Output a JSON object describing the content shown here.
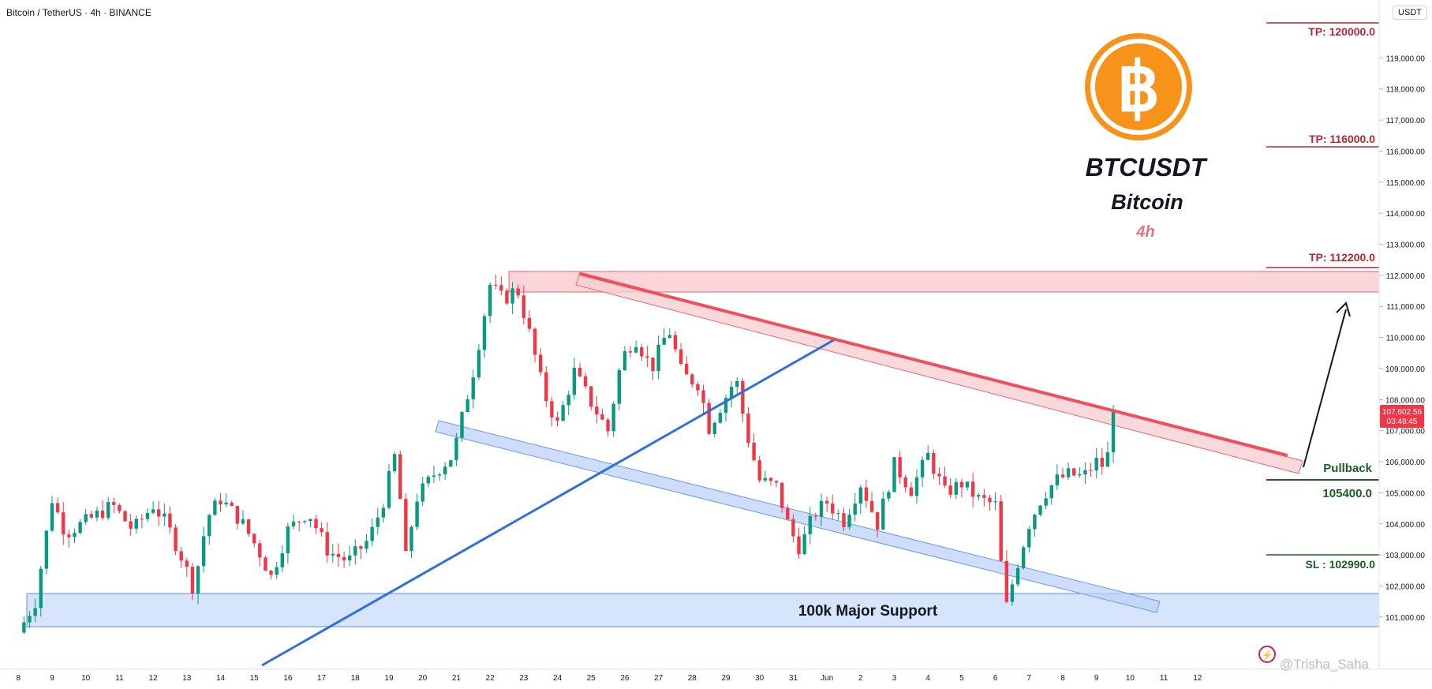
{
  "header": {
    "symbol_line": "Bitcoin / TetherUS · 4h · BINANCE",
    "currency": "USDT"
  },
  "branding": {
    "logo": "bitcoin-logo",
    "ticker": "BTCUSDT",
    "name": "Bitcoin",
    "timeframe": "4h"
  },
  "levels": {
    "tp1": "TP: 120000.0",
    "tp2": "TP: 116000.0",
    "tp3": "TP: 112200.0",
    "entry_label": "Pullback",
    "entry_value": "105400.0",
    "sl": "SL : 102990.0"
  },
  "price_tag": {
    "price": "107,602.56",
    "countdown": "03:48:45"
  },
  "annotations": {
    "support": "100k Major Support"
  },
  "watermark": "@Trisha_Saha",
  "colors": {
    "up": "#089981",
    "down": "#f23645",
    "tp": "#b22833",
    "sl_entry": "#1b5e20",
    "trendline": "#f0505c",
    "channel_blue": "#2f6fe0",
    "support_fill": "#cfe0fb"
  },
  "chart_data": {
    "type": "candlestick",
    "timeframe": "4h",
    "ylim": [
      99500,
      121000
    ],
    "y_ticks": [
      "101,000.00",
      "102,000.00",
      "103,000.00",
      "104,000.00",
      "105,000.00",
      "106,000.00",
      "107,000.00",
      "108,000.00",
      "109,000.00",
      "110,000.00",
      "111,000.00",
      "112,000.00",
      "113,000.00",
      "114,000.00",
      "115,000.00",
      "116,000.00",
      "117,000.00",
      "118,000.00",
      "119,000.00"
    ],
    "x_ticks": [
      "8",
      "9",
      "10",
      "11",
      "12",
      "13",
      "14",
      "15",
      "16",
      "17",
      "18",
      "19",
      "20",
      "21",
      "22",
      "23",
      "24",
      "25",
      "26",
      "27",
      "28",
      "29",
      "30",
      "31",
      "Jun",
      "2",
      "3",
      "4",
      "5",
      "6",
      "7",
      "8",
      "9",
      "10",
      "11",
      "12"
    ],
    "last_price": 107602.56,
    "anchors": [
      {
        "day": 8.0,
        "price": 100500
      },
      {
        "day": 8.5,
        "price": 101500
      },
      {
        "day": 9.0,
        "price": 104800
      },
      {
        "day": 9.4,
        "price": 103700
      },
      {
        "day": 10.2,
        "price": 104200
      },
      {
        "day": 10.8,
        "price": 104600
      },
      {
        "day": 11.4,
        "price": 103800
      },
      {
        "day": 12.0,
        "price": 104600
      },
      {
        "day": 12.4,
        "price": 104000
      },
      {
        "day": 12.9,
        "price": 102800
      },
      {
        "day": 13.2,
        "price": 101900
      },
      {
        "day": 13.6,
        "price": 104200
      },
      {
        "day": 14.0,
        "price": 104800
      },
      {
        "day": 14.6,
        "price": 104100
      },
      {
        "day": 15.1,
        "price": 103200
      },
      {
        "day": 15.5,
        "price": 102300
      },
      {
        "day": 16.0,
        "price": 103800
      },
      {
        "day": 16.6,
        "price": 104400
      },
      {
        "day": 17.2,
        "price": 103100
      },
      {
        "day": 17.8,
        "price": 102800
      },
      {
        "day": 18.4,
        "price": 103500
      },
      {
        "day": 18.8,
        "price": 104600
      },
      {
        "day": 19.2,
        "price": 106300
      },
      {
        "day": 19.5,
        "price": 102900
      },
      {
        "day": 19.8,
        "price": 104800
      },
      {
        "day": 20.4,
        "price": 105700
      },
      {
        "day": 20.9,
        "price": 106200
      },
      {
        "day": 21.5,
        "price": 108900
      },
      {
        "day": 22.0,
        "price": 111700
      },
      {
        "day": 22.4,
        "price": 111200
      },
      {
        "day": 22.8,
        "price": 111600
      },
      {
        "day": 23.2,
        "price": 110000
      },
      {
        "day": 23.6,
        "price": 108200
      },
      {
        "day": 24.0,
        "price": 107200
      },
      {
        "day": 24.5,
        "price": 108900
      },
      {
        "day": 25.0,
        "price": 107900
      },
      {
        "day": 25.5,
        "price": 107000
      },
      {
        "day": 25.9,
        "price": 109300
      },
      {
        "day": 26.3,
        "price": 110000
      },
      {
        "day": 26.8,
        "price": 109000
      },
      {
        "day": 27.3,
        "price": 110300
      },
      {
        "day": 27.7,
        "price": 108800
      },
      {
        "day": 28.2,
        "price": 108500
      },
      {
        "day": 28.5,
        "price": 107100
      },
      {
        "day": 28.9,
        "price": 107900
      },
      {
        "day": 29.3,
        "price": 108700
      },
      {
        "day": 29.6,
        "price": 107000
      },
      {
        "day": 30.0,
        "price": 105400
      },
      {
        "day": 30.5,
        "price": 105200
      },
      {
        "day": 30.9,
        "price": 103800
      },
      {
        "day": 31.2,
        "price": 103200
      },
      {
        "day": 31.6,
        "price": 104300
      },
      {
        "day": 32.0,
        "price": 104700
      },
      {
        "day": 32.5,
        "price": 104100
      },
      {
        "day": 33.0,
        "price": 105300
      },
      {
        "day": 33.5,
        "price": 104000
      },
      {
        "day": 34.0,
        "price": 105900
      },
      {
        "day": 34.5,
        "price": 105100
      },
      {
        "day": 35.0,
        "price": 106200
      },
      {
        "day": 35.5,
        "price": 105000
      },
      {
        "day": 36.0,
        "price": 105300
      },
      {
        "day": 36.5,
        "price": 104800
      },
      {
        "day": 37.0,
        "price": 104600
      },
      {
        "day": 37.3,
        "price": 101200
      },
      {
        "day": 37.6,
        "price": 102500
      },
      {
        "day": 38.0,
        "price": 104000
      },
      {
        "day": 38.4,
        "price": 104900
      },
      {
        "day": 38.8,
        "price": 105400
      },
      {
        "day": 39.2,
        "price": 105600
      },
      {
        "day": 39.6,
        "price": 105500
      },
      {
        "day": 40.0,
        "price": 106000
      },
      {
        "day": 40.3,
        "price": 105800
      },
      {
        "day": 40.45,
        "price": 107600
      },
      {
        "day": 40.6,
        "price": 107600
      }
    ]
  }
}
